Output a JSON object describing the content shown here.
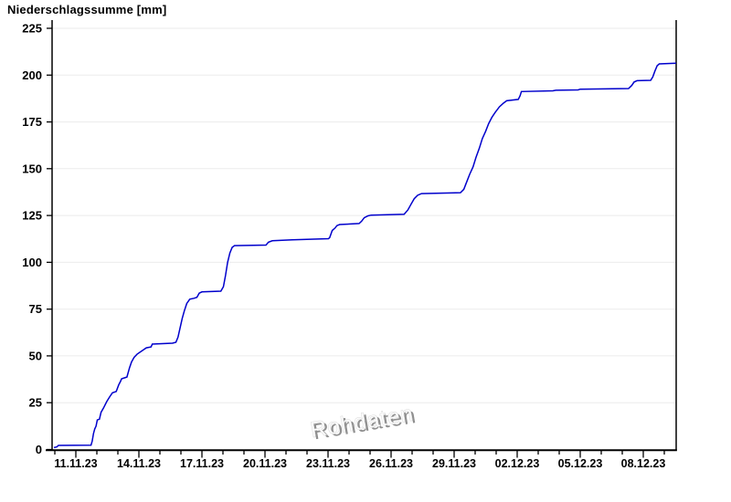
{
  "header": {
    "title": "Niederschlagssumme [mm]"
  },
  "watermark": {
    "label": "Rohdaten"
  },
  "chart_data": {
    "type": "line",
    "title": "Niederschlagssumme [mm]",
    "xlabel": "",
    "ylabel": "Niederschlagssumme [mm]",
    "ylim": [
      0,
      225
    ],
    "y_ticks": [
      0,
      25,
      50,
      75,
      100,
      125,
      150,
      175,
      200,
      225
    ],
    "grid": "horizontal-only",
    "legend": "none",
    "x_domain_days_rel_11_11": [
      -1.13,
      28.57
    ],
    "x_minor_tick_step_days": 1,
    "x_major_ticks": [
      {
        "day": 0,
        "label": "11.11.23"
      },
      {
        "day": 3,
        "label": "14.11.23"
      },
      {
        "day": 6,
        "label": "17.11.23"
      },
      {
        "day": 9,
        "label": "20.11.23"
      },
      {
        "day": 12,
        "label": "23.11.23"
      },
      {
        "day": 15,
        "label": "26.11.23"
      },
      {
        "day": 18,
        "label": "29.11.23"
      },
      {
        "day": 21,
        "label": "02.12.23"
      },
      {
        "day": 24,
        "label": "05.12.23"
      },
      {
        "day": 27,
        "label": "08.12.23"
      }
    ],
    "colors": {
      "line": "#0000cc",
      "grid": "#ebebeb",
      "axis": "#000000",
      "watermark_gray": "#8f8f8f",
      "watermark_light": "#d8d8d8"
    },
    "series": [
      {
        "name": "Niederschlagssumme",
        "unit": "mm",
        "points_day_mm": [
          [
            -1.04,
            1.0
          ],
          [
            -0.9,
            1.4
          ],
          [
            -0.83,
            2.2
          ],
          [
            0.72,
            2.3
          ],
          [
            0.78,
            4.5
          ],
          [
            0.84,
            8.5
          ],
          [
            0.9,
            11.0
          ],
          [
            0.96,
            12.5
          ],
          [
            1.02,
            15.8
          ],
          [
            1.12,
            16.2
          ],
          [
            1.2,
            19.9
          ],
          [
            1.32,
            22.3
          ],
          [
            1.47,
            25.6
          ],
          [
            1.6,
            28.0
          ],
          [
            1.74,
            30.3
          ],
          [
            1.92,
            31.0
          ],
          [
            2.04,
            34.5
          ],
          [
            2.12,
            36.3
          ],
          [
            2.18,
            37.8
          ],
          [
            2.43,
            38.7
          ],
          [
            2.55,
            43.6
          ],
          [
            2.65,
            46.7
          ],
          [
            2.77,
            49.2
          ],
          [
            2.92,
            51.0
          ],
          [
            3.35,
            54.3
          ],
          [
            3.58,
            54.8
          ],
          [
            3.64,
            56.3
          ],
          [
            4.6,
            56.8
          ],
          [
            4.76,
            57.3
          ],
          [
            4.86,
            60.0
          ],
          [
            4.96,
            65.0
          ],
          [
            5.06,
            70.0
          ],
          [
            5.16,
            74.0
          ],
          [
            5.28,
            78.0
          ],
          [
            5.42,
            80.3
          ],
          [
            5.62,
            80.8
          ],
          [
            5.76,
            81.3
          ],
          [
            5.87,
            83.5
          ],
          [
            6.0,
            84.2
          ],
          [
            6.9,
            84.6
          ],
          [
            7.02,
            87.0
          ],
          [
            7.12,
            93.0
          ],
          [
            7.22,
            100.0
          ],
          [
            7.33,
            105.0
          ],
          [
            7.44,
            108.0
          ],
          [
            7.55,
            108.9
          ],
          [
            9.05,
            109.2
          ],
          [
            9.16,
            110.7
          ],
          [
            9.35,
            111.5
          ],
          [
            10.3,
            112.0
          ],
          [
            12.02,
            112.6
          ],
          [
            12.08,
            113.2
          ],
          [
            12.2,
            117.0
          ],
          [
            12.33,
            118.3
          ],
          [
            12.42,
            119.6
          ],
          [
            12.55,
            120.2
          ],
          [
            13.48,
            120.7
          ],
          [
            13.6,
            122.0
          ],
          [
            13.72,
            123.8
          ],
          [
            13.9,
            124.8
          ],
          [
            14.05,
            125.2
          ],
          [
            15.62,
            125.7
          ],
          [
            15.8,
            128.0
          ],
          [
            15.95,
            131.0
          ],
          [
            16.1,
            134.0
          ],
          [
            16.26,
            135.8
          ],
          [
            16.45,
            136.7
          ],
          [
            18.3,
            137.2
          ],
          [
            18.46,
            139.0
          ],
          [
            18.6,
            143.0
          ],
          [
            18.74,
            147.0
          ],
          [
            18.9,
            151.0
          ],
          [
            19.04,
            156.0
          ],
          [
            19.2,
            161.0
          ],
          [
            19.34,
            166.0
          ],
          [
            19.5,
            170.0
          ],
          [
            19.64,
            174.0
          ],
          [
            19.8,
            177.5
          ],
          [
            19.95,
            180.0
          ],
          [
            20.15,
            183.0
          ],
          [
            20.35,
            185.0
          ],
          [
            20.5,
            186.3
          ],
          [
            21.05,
            187.0
          ],
          [
            21.14,
            189.0
          ],
          [
            21.2,
            191.2
          ],
          [
            22.7,
            191.6
          ],
          [
            22.84,
            191.9
          ],
          [
            23.9,
            192.1
          ],
          [
            24.0,
            192.5
          ],
          [
            26.3,
            192.8
          ],
          [
            26.45,
            194.5
          ],
          [
            26.56,
            196.3
          ],
          [
            26.7,
            197.0
          ],
          [
            27.35,
            197.2
          ],
          [
            27.45,
            199.0
          ],
          [
            27.55,
            202.0
          ],
          [
            27.66,
            205.0
          ],
          [
            27.76,
            206.0
          ],
          [
            28.56,
            206.4
          ]
        ]
      }
    ]
  }
}
